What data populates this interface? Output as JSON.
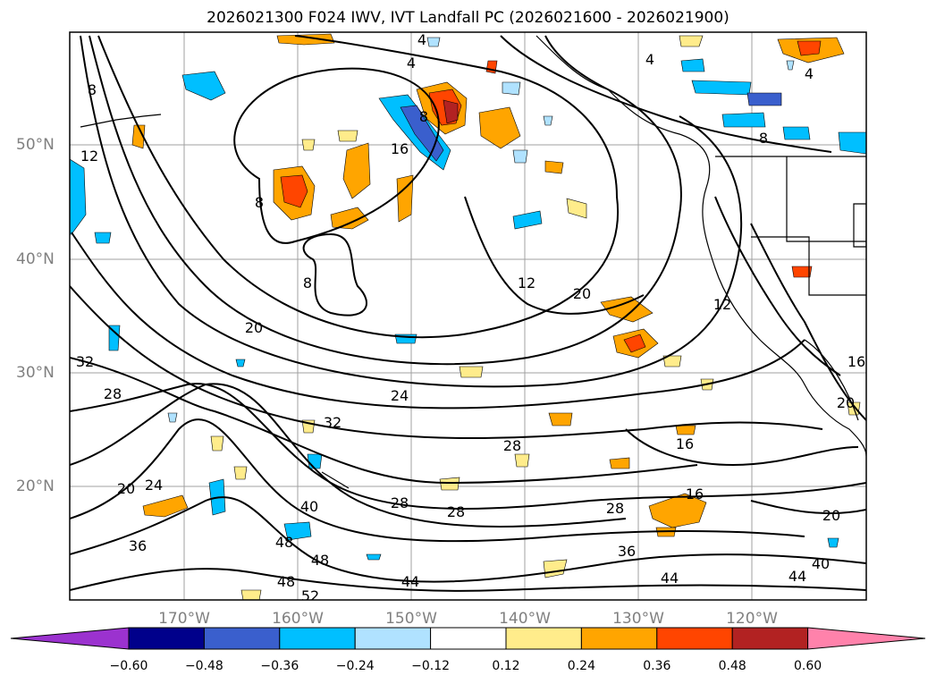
{
  "title": "2026021300 F024 IWV, IVT Landfall PC (2026021600 - 2026021900)",
  "lat_labels": [
    "50°N",
    "40°N",
    "30°N",
    "20°N"
  ],
  "lon_labels": [
    "170°W",
    "160°W",
    "150°W",
    "140°W",
    "130°W",
    "120°W"
  ],
  "contour_labels": [
    "4",
    "4",
    "4",
    "4",
    "8",
    "8",
    "8",
    "8",
    "8",
    "12",
    "12",
    "12",
    "16",
    "16",
    "16",
    "16",
    "20",
    "20",
    "20",
    "20",
    "20",
    "24",
    "24",
    "28",
    "28",
    "28",
    "28",
    "28",
    "32",
    "32",
    "36",
    "36",
    "40",
    "40",
    "44",
    "44",
    "44",
    "48",
    "48",
    "48",
    "52"
  ],
  "colorbar": {
    "ticks": [
      "−0.60",
      "−0.48",
      "−0.36",
      "−0.24",
      "−0.12",
      "0.12",
      "0.24",
      "0.36",
      "0.48",
      "0.60"
    ],
    "colors": [
      "#9b32cf",
      "#00008b",
      "#3a5fcd",
      "#00bfff",
      "#b0e2ff",
      "#ffffff",
      "#ffec8b",
      "#ffa500",
      "#ff4500",
      "#b22222",
      "#ff82ab"
    ]
  },
  "colors": {
    "coastline": "#000000",
    "grid": "#a0a0a0",
    "contour": "#000000",
    "axis_label": "#808080"
  }
}
